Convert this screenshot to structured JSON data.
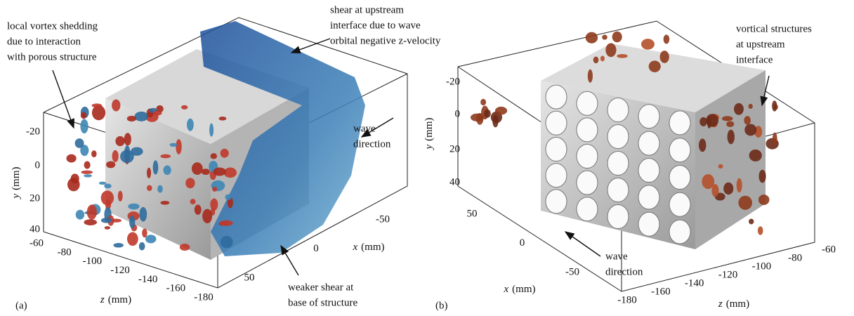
{
  "panels": [
    {
      "label": "(a)",
      "annotations": [
        {
          "lines": [
            "local vortex shedding",
            "due to interaction",
            "with porous structure"
          ]
        },
        {
          "lines": [
            "shear at upstream",
            "interface due to wave",
            "orbital negative z-velocity"
          ]
        },
        {
          "lines": [
            "wave",
            "direction"
          ]
        },
        {
          "lines": [
            "weaker shear at",
            "base of structure"
          ]
        }
      ],
      "axes": {
        "y": {
          "variable": "y",
          "unit": "(mm)",
          "ticks": [
            -20,
            0,
            20,
            40
          ]
        },
        "z": {
          "variable": "z",
          "unit": "(mm)",
          "ticks": [
            -60,
            -80,
            -100,
            -120,
            -140,
            -160,
            -180
          ]
        },
        "x": {
          "variable": "x",
          "unit": "(mm)",
          "ticks": [
            -50,
            0,
            50
          ]
        }
      }
    },
    {
      "label": "(b)",
      "annotations": [
        {
          "lines": [
            "vortical structures",
            "at upstream",
            "interface"
          ]
        },
        {
          "lines": [
            "wave",
            "direction"
          ]
        }
      ],
      "axes": {
        "y": {
          "variable": "y",
          "unit": "(mm)",
          "ticks": [
            -20,
            0,
            20,
            40
          ]
        },
        "z": {
          "variable": "z",
          "unit": "(mm)",
          "ticks": [
            -180,
            -160,
            -140,
            -120,
            -100,
            -80,
            -60
          ]
        },
        "x": {
          "variable": "x",
          "unit": "(mm)",
          "ticks": [
            50,
            0,
            -50
          ]
        }
      }
    }
  ]
}
